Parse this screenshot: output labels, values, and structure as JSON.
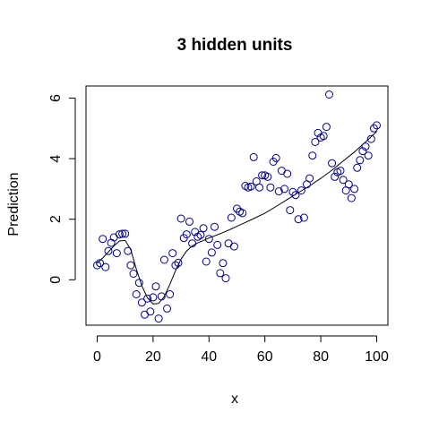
{
  "chart_data": {
    "type": "scatter",
    "title": "3 hidden units",
    "xlabel": "x",
    "ylabel": "Prediction",
    "xlim": [
      -4,
      104
    ],
    "ylim": [
      -1.5,
      6.4
    ],
    "xticks": [
      0,
      20,
      40,
      60,
      80,
      100
    ],
    "yticks": [
      0,
      2,
      4,
      6
    ],
    "grid": false,
    "point_color": "#00008b",
    "line_color": "#000000",
    "series": [
      {
        "type": "scatter",
        "x": [
          0,
          1,
          2,
          3,
          4,
          5,
          6,
          7,
          8,
          9,
          10,
          11,
          12,
          13,
          14,
          15,
          16,
          17,
          18,
          19,
          20,
          21,
          22,
          23,
          24,
          25,
          26,
          27,
          28,
          29,
          30,
          31,
          32,
          33,
          34,
          35,
          36,
          37,
          38,
          39,
          40,
          41,
          42,
          43,
          44,
          45,
          46,
          47,
          48,
          49,
          50,
          51,
          52,
          53,
          54,
          55,
          56,
          57,
          58,
          59,
          60,
          61,
          62,
          63,
          64,
          65,
          66,
          67,
          68,
          69,
          70,
          71,
          72,
          73,
          74,
          75,
          76,
          77,
          78,
          79,
          80,
          81,
          82,
          83,
          84,
          85,
          86,
          87,
          88,
          89,
          90,
          91,
          92,
          93,
          94,
          95,
          96,
          97,
          98,
          99,
          100
        ],
        "y": [
          0.48,
          0.55,
          1.35,
          0.42,
          0.95,
          1.22,
          1.4,
          0.88,
          1.5,
          1.52,
          1.52,
          0.95,
          0.48,
          0.2,
          -0.48,
          -0.1,
          -0.75,
          -1.15,
          -0.62,
          -1.05,
          -0.58,
          -0.22,
          -1.28,
          -0.55,
          0.66,
          -0.95,
          -0.48,
          0.88,
          0.48,
          0.56,
          2.02,
          1.38,
          1.5,
          1.92,
          1.2,
          1.58,
          1.42,
          1.48,
          1.7,
          0.6,
          1.35,
          0.9,
          1.75,
          1.15,
          0.22,
          0.55,
          0.05,
          1.2,
          2.05,
          1.1,
          2.35,
          2.25,
          2.2,
          3.1,
          3.05,
          3.08,
          4.05,
          3.25,
          3.05,
          3.45,
          3.45,
          3.4,
          3.05,
          3.9,
          4.02,
          2.92,
          3.6,
          3.0,
          3.5,
          2.3,
          2.9,
          2.8,
          2.0,
          2.95,
          2.05,
          3.15,
          3.35,
          4.1,
          4.55,
          4.85,
          4.7,
          4.75,
          5.05,
          6.12,
          3.85,
          3.4,
          3.55,
          3.6,
          3.3,
          2.95,
          3.15,
          2.7,
          3.0,
          3.7,
          3.95,
          4.25,
          4.4,
          4.1,
          4.65,
          5.0,
          5.1
        ]
      },
      {
        "type": "line",
        "x": [
          0,
          2,
          4,
          6,
          8,
          10,
          12,
          14,
          16,
          18,
          20,
          22,
          24,
          26,
          28,
          30,
          32,
          34,
          36,
          38,
          40,
          44,
          48,
          52,
          56,
          60,
          64,
          68,
          72,
          76,
          80,
          84,
          88,
          92,
          96,
          100
        ],
        "y": [
          0.55,
          0.72,
          0.92,
          1.12,
          1.28,
          1.3,
          1.0,
          0.35,
          -0.2,
          -0.6,
          -0.8,
          -0.78,
          -0.55,
          -0.15,
          0.3,
          0.68,
          0.95,
          1.12,
          1.22,
          1.3,
          1.38,
          1.52,
          1.68,
          1.85,
          2.02,
          2.2,
          2.42,
          2.65,
          2.88,
          3.1,
          3.35,
          3.62,
          3.92,
          4.22,
          4.55,
          4.9
        ]
      }
    ]
  }
}
